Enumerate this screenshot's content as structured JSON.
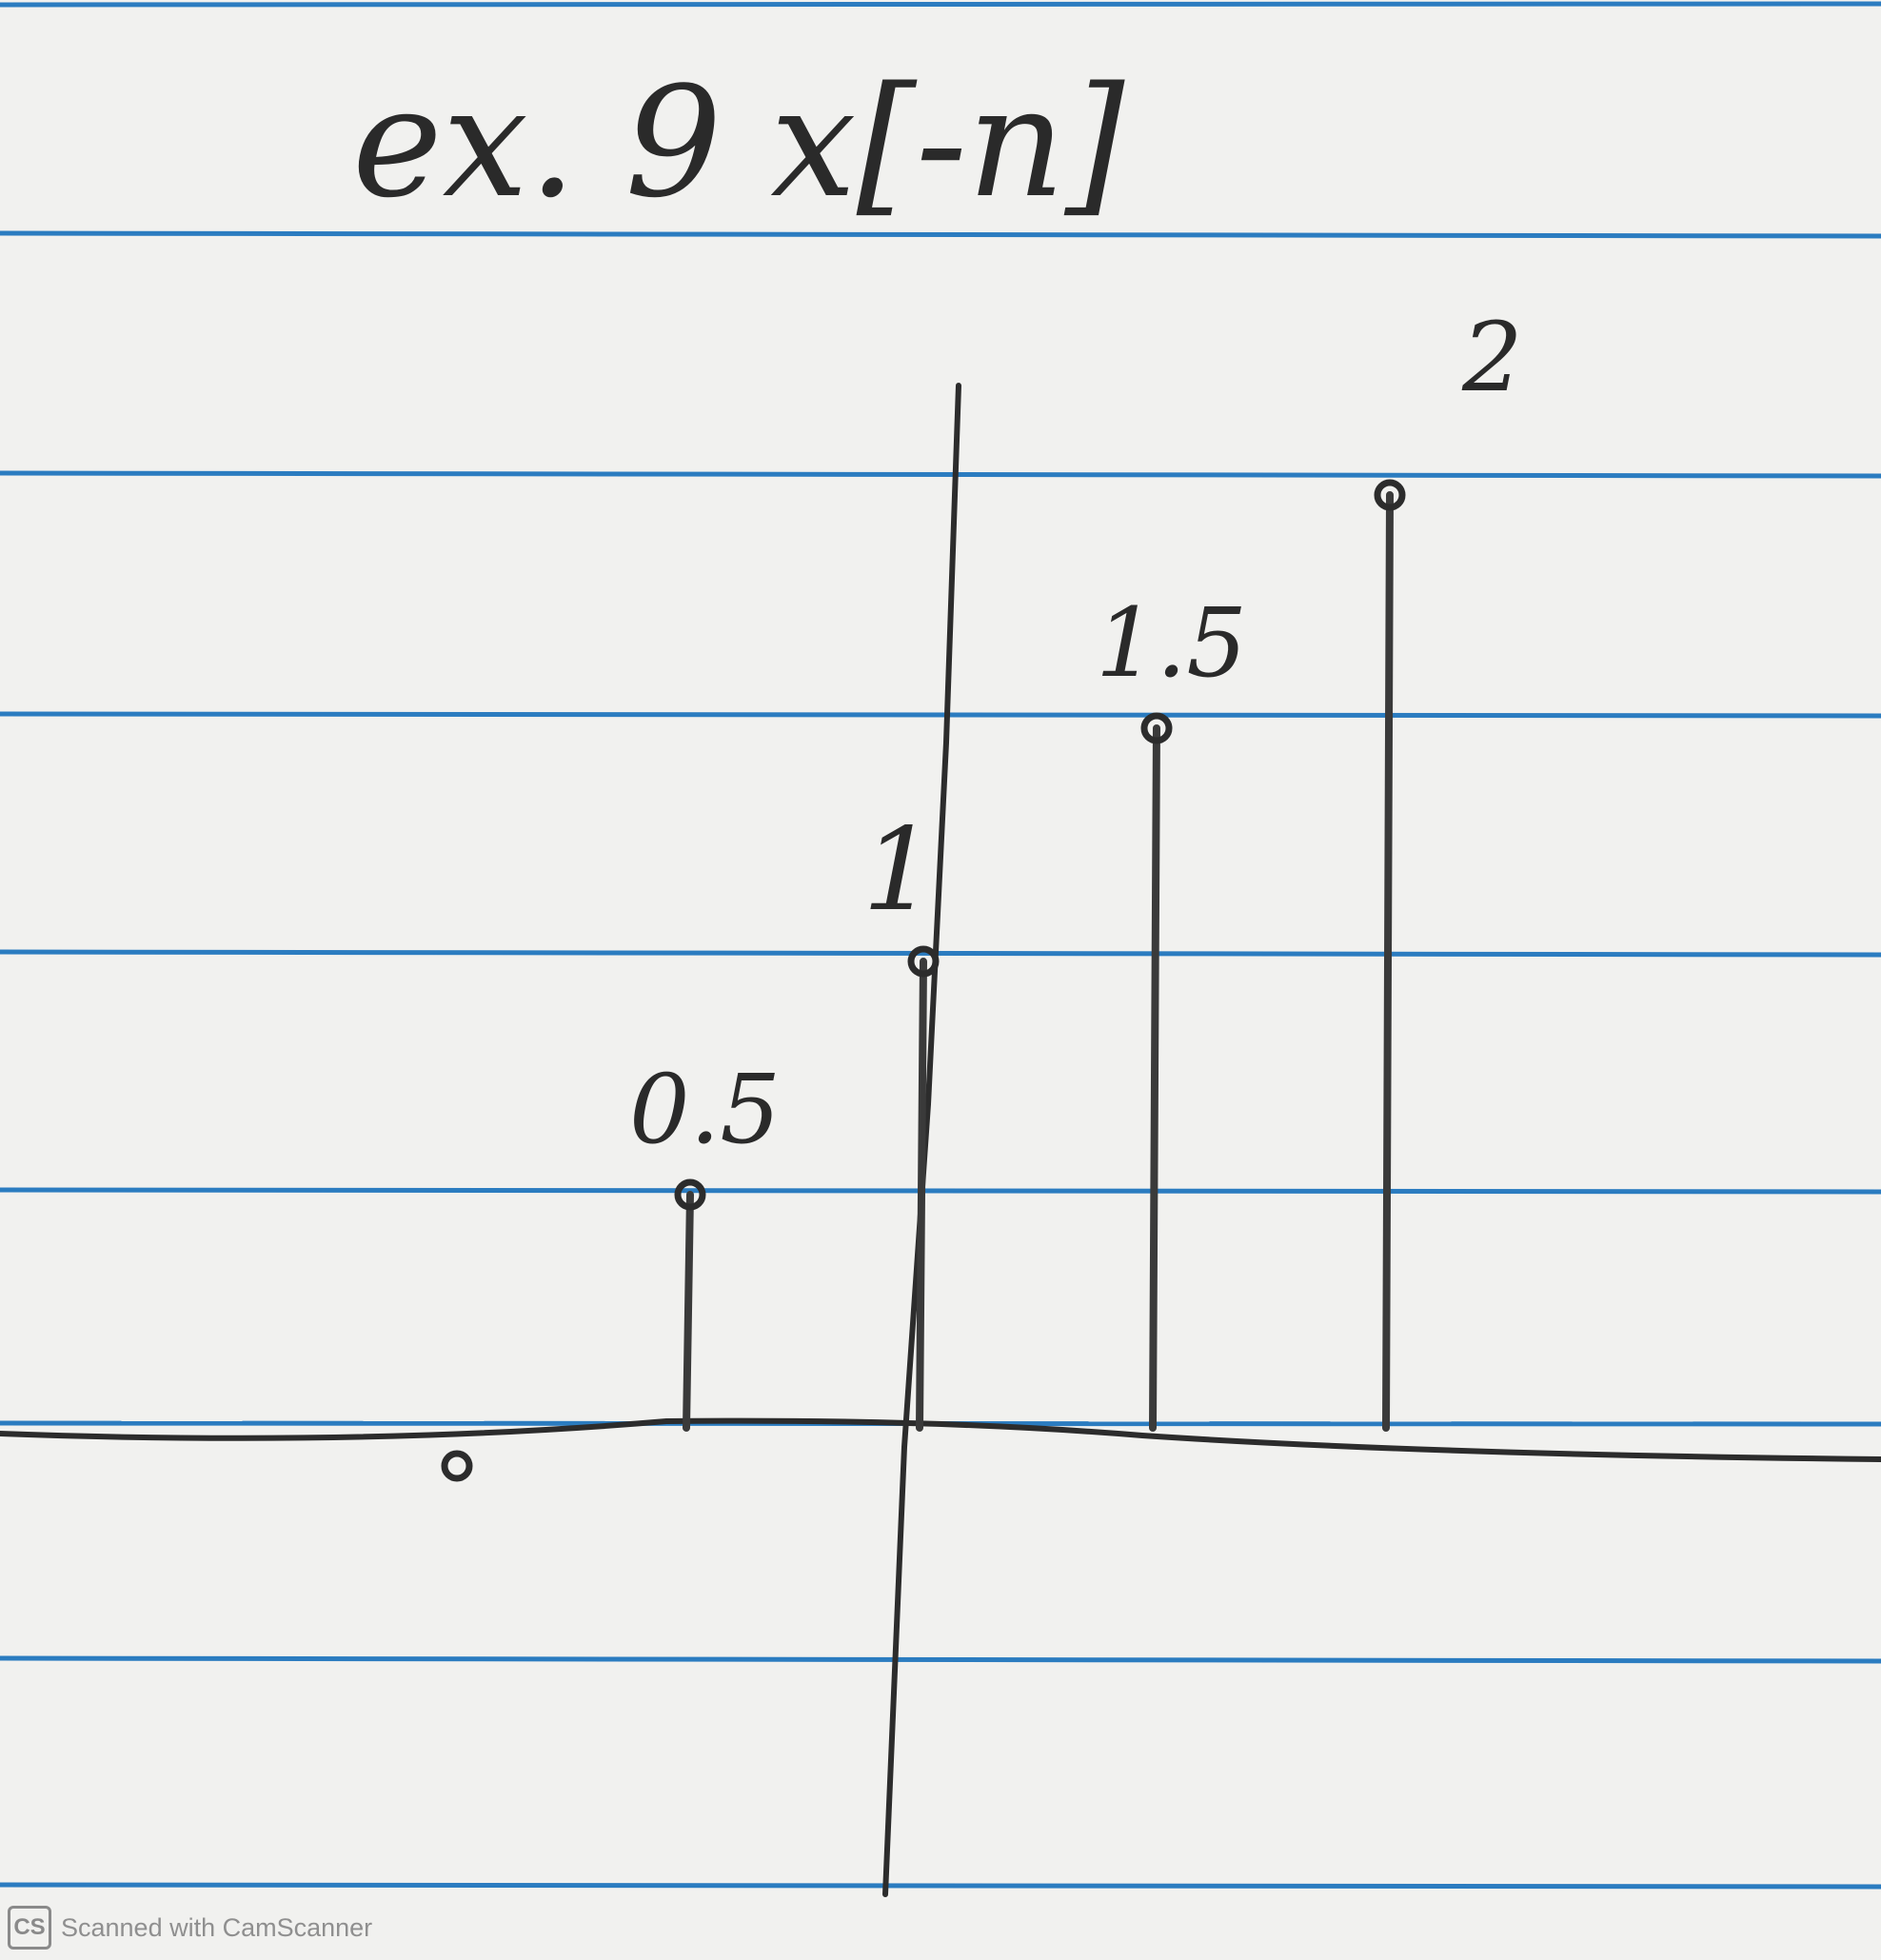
{
  "chart_data": {
    "type": "stem",
    "title": "ex. 9 x[-n]",
    "xlabel": "",
    "ylabel": "",
    "grid": false,
    "points": [
      {
        "x": -2,
        "y": 0,
        "label": ""
      },
      {
        "x": -1,
        "y": 0.5,
        "label": "0.5"
      },
      {
        "x": 0,
        "y": 1,
        "label": "1"
      },
      {
        "x": 1,
        "y": 1.5,
        "label": "1.5"
      },
      {
        "x": 2,
        "y": 2,
        "label": "2"
      }
    ]
  },
  "footer": {
    "logo_text": "CS",
    "text": "Scanned with CamScanner"
  },
  "colors": {
    "paper": "#f1f1ef",
    "ruled_line": "#2b7cc0",
    "ink": "#2c2c2c"
  }
}
